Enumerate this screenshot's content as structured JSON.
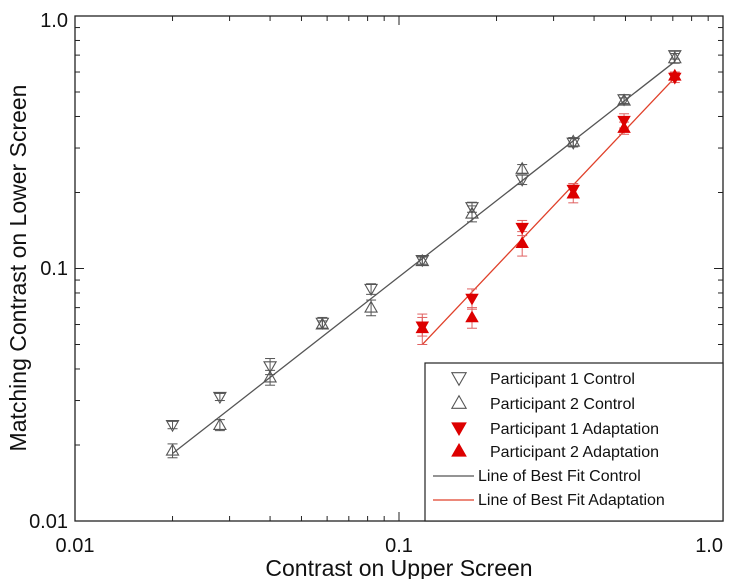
{
  "chart_data": {
    "type": "scatter",
    "xlabel": "Contrast on Upper Screen",
    "ylabel": "Matching Contrast on Lower Screen",
    "xscale": "log",
    "yscale": "log",
    "xlim": [
      0.01,
      1.0
    ],
    "ylim": [
      0.01,
      1.0
    ],
    "xticks": [
      0.01,
      0.1,
      1.0
    ],
    "xtick_labels": [
      "0.01",
      "0.1",
      "1.0"
    ],
    "yticks": [
      0.01,
      0.1,
      1.0
    ],
    "ytick_labels": [
      "0.01",
      "0.1",
      "1.0"
    ],
    "grid": false,
    "legend_position": "bottom-right",
    "series": [
      {
        "name": "Participant 1 Control",
        "marker": "triangle-down-open",
        "color": "#555555",
        "points": [
          {
            "x": 0.02,
            "y": 0.024,
            "err": 0.0008
          },
          {
            "x": 0.028,
            "y": 0.031,
            "err": 0.001
          },
          {
            "x": 0.04,
            "y": 0.041,
            "err": 0.003
          },
          {
            "x": 0.058,
            "y": 0.061,
            "err": 0.003
          },
          {
            "x": 0.082,
            "y": 0.083,
            "err": 0.004
          },
          {
            "x": 0.118,
            "y": 0.108,
            "err": 0.004
          },
          {
            "x": 0.168,
            "y": 0.175,
            "err": 0.008
          },
          {
            "x": 0.24,
            "y": 0.225,
            "err": 0.01
          },
          {
            "x": 0.345,
            "y": 0.315,
            "err": 0.012
          },
          {
            "x": 0.495,
            "y": 0.468,
            "err": 0.02
          },
          {
            "x": 0.71,
            "y": 0.7,
            "err": 0.025
          }
        ]
      },
      {
        "name": "Participant 2 Control",
        "marker": "triangle-up-open",
        "color": "#555555",
        "points": [
          {
            "x": 0.02,
            "y": 0.019,
            "err": 0.0012
          },
          {
            "x": 0.028,
            "y": 0.024,
            "err": 0.0012
          },
          {
            "x": 0.04,
            "y": 0.037,
            "err": 0.0025
          },
          {
            "x": 0.058,
            "y": 0.06,
            "err": 0.002
          },
          {
            "x": 0.082,
            "y": 0.07,
            "err": 0.005
          },
          {
            "x": 0.118,
            "y": 0.107,
            "err": 0.004
          },
          {
            "x": 0.168,
            "y": 0.165,
            "err": 0.012
          },
          {
            "x": 0.24,
            "y": 0.248,
            "err": 0.01
          },
          {
            "x": 0.345,
            "y": 0.318,
            "err": 0.012
          },
          {
            "x": 0.495,
            "y": 0.462,
            "err": 0.012
          },
          {
            "x": 0.71,
            "y": 0.68,
            "err": 0.03
          }
        ]
      },
      {
        "name": "Participant 1 Adaptation",
        "marker": "triangle-down-filled",
        "color": "#dd0000",
        "points": [
          {
            "x": 0.118,
            "y": 0.059,
            "err": 0.005
          },
          {
            "x": 0.168,
            "y": 0.076,
            "err": 0.007
          },
          {
            "x": 0.24,
            "y": 0.145,
            "err": 0.01
          },
          {
            "x": 0.345,
            "y": 0.205,
            "err": 0.012
          },
          {
            "x": 0.495,
            "y": 0.385,
            "err": 0.025
          },
          {
            "x": 0.71,
            "y": 0.57,
            "err": 0.025
          }
        ]
      },
      {
        "name": "Participant 2 Adaptation",
        "marker": "triangle-up-filled",
        "color": "#dd0000",
        "points": [
          {
            "x": 0.118,
            "y": 0.058,
            "err": 0.008
          },
          {
            "x": 0.168,
            "y": 0.064,
            "err": 0.006
          },
          {
            "x": 0.24,
            "y": 0.126,
            "err": 0.014
          },
          {
            "x": 0.345,
            "y": 0.198,
            "err": 0.016
          },
          {
            "x": 0.495,
            "y": 0.36,
            "err": 0.02
          },
          {
            "x": 0.71,
            "y": 0.58,
            "err": 0.02
          }
        ]
      }
    ],
    "lines": [
      {
        "name": "Line of Best Fit Control",
        "color": "#555555",
        "points": [
          {
            "x": 0.02,
            "y": 0.0185
          },
          {
            "x": 0.71,
            "y": 0.66
          }
        ]
      },
      {
        "name": "Line of Best Fit Adaptation",
        "color": "#e0402a",
        "points": [
          {
            "x": 0.118,
            "y": 0.05
          },
          {
            "x": 0.71,
            "y": 0.57
          }
        ]
      }
    ]
  }
}
